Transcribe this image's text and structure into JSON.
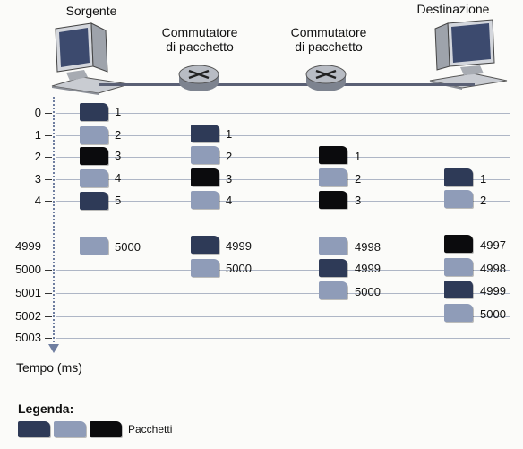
{
  "nodes": {
    "source": "Sorgente",
    "switch1_line1": "Commutatore",
    "switch1_line2": "di pacchetto",
    "switch2_line1": "Commutatore",
    "switch2_line2": "di pacchetto",
    "destination": "Destinazione"
  },
  "time_axis": {
    "title": "Tempo (ms)",
    "ticks": [
      "0",
      "1",
      "2",
      "3",
      "4",
      "4999",
      "5000",
      "5001",
      "5002",
      "5003"
    ]
  },
  "columns": {
    "source": [
      {
        "label": "1",
        "color": "dark"
      },
      {
        "label": "2",
        "color": "light"
      },
      {
        "label": "3",
        "color": "black"
      },
      {
        "label": "4",
        "color": "light"
      },
      {
        "label": "5",
        "color": "dark"
      },
      {
        "label": "5000",
        "color": "light"
      }
    ],
    "switch1": [
      {
        "label": "1",
        "color": "dark"
      },
      {
        "label": "2",
        "color": "light"
      },
      {
        "label": "3",
        "color": "black"
      },
      {
        "label": "4",
        "color": "light"
      },
      {
        "label": "4999",
        "color": "dark"
      },
      {
        "label": "5000",
        "color": "light"
      }
    ],
    "switch2": [
      {
        "label": "1",
        "color": "black"
      },
      {
        "label": "2",
        "color": "light"
      },
      {
        "label": "3",
        "color": "black"
      },
      {
        "label": "4998",
        "color": "light"
      },
      {
        "label": "4999",
        "color": "dark"
      },
      {
        "label": "5000",
        "color": "light"
      }
    ],
    "destination": [
      {
        "label": "1",
        "color": "dark"
      },
      {
        "label": "2",
        "color": "light"
      },
      {
        "label": "4997",
        "color": "black"
      },
      {
        "label": "4998",
        "color": "light"
      },
      {
        "label": "4999",
        "color": "dark"
      },
      {
        "label": "5000",
        "color": "light"
      }
    ]
  },
  "legend": {
    "title": "Legenda:",
    "label": "Pacchetti",
    "colors": {
      "dark": "#2e3a57",
      "light": "#8f9cb8",
      "black": "#0b0b0d"
    }
  }
}
